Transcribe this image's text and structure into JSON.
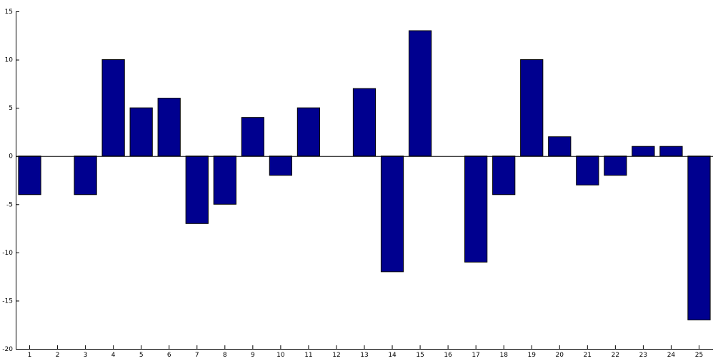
{
  "chart_data": {
    "type": "bar",
    "title": "",
    "xlabel": "",
    "ylabel": "",
    "categories": [
      "1",
      "2",
      "3",
      "4",
      "5",
      "6",
      "7",
      "8",
      "9",
      "10",
      "11",
      "12",
      "13",
      "14",
      "15",
      "16",
      "17",
      "18",
      "19",
      "20",
      "21",
      "22",
      "23",
      "24",
      "25"
    ],
    "values": [
      -4,
      0,
      -4,
      10,
      5,
      6,
      -7,
      -5,
      4,
      -2,
      5,
      0,
      7,
      -12,
      13,
      0,
      -11,
      -4,
      10,
      2,
      -3,
      -2,
      1,
      1,
      -17
    ],
    "ylim": [
      -20,
      15
    ],
    "yticks": [
      15,
      10,
      5,
      0,
      -5,
      -10,
      -15,
      -20
    ],
    "ytick_labels": [
      "15",
      "10",
      "5",
      "0",
      "-5",
      "-10",
      "-15",
      "-20"
    ],
    "xlim": [
      0.5,
      25.5
    ],
    "bar_color": "#00008f",
    "grid": false,
    "legend": "none"
  }
}
